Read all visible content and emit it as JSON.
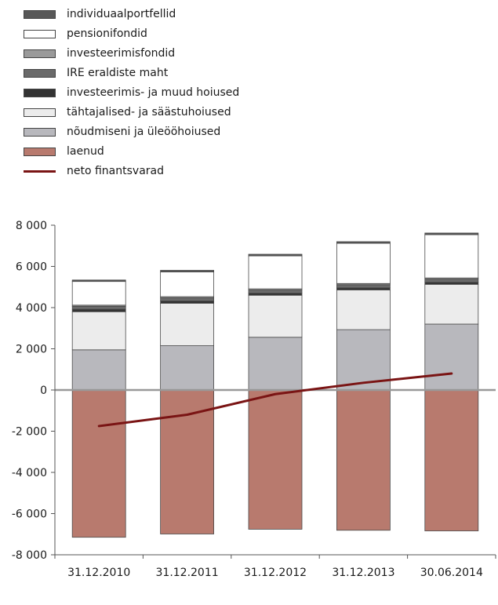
{
  "chart_data": {
    "type": "bar",
    "stacked": true,
    "categories": [
      "31.12.2010",
      "31.12.2011",
      "31.12.2012",
      "31.12.2013",
      "30.06.2014"
    ],
    "ylim": [
      -8000,
      8000
    ],
    "yticks": [
      8000,
      6000,
      4000,
      2000,
      0,
      -2000,
      -4000,
      -6000,
      -8000
    ],
    "ytick_labels": [
      "8 000",
      "6 000",
      "4 000",
      "2 000",
      "0",
      "-2 000",
      "-4 000",
      "-6 000",
      "-8 000"
    ],
    "legend": {
      "position": "top"
    },
    "series": [
      {
        "name": "laenud",
        "kind": "bar",
        "color": "#b87a6e",
        "values": [
          -7150,
          -6990,
          -6760,
          -6810,
          -6840
        ]
      },
      {
        "name": "nõudmiseni ja üleööhoiused",
        "kind": "bar",
        "color": "#b8b8bd",
        "values": [
          1950,
          2150,
          2560,
          2930,
          3200
        ]
      },
      {
        "name": "tähtajalised- ja säästuhoiused",
        "kind": "bar",
        "color": "#ececec",
        "values": [
          1850,
          2060,
          2040,
          1930,
          1930
        ]
      },
      {
        "name": "investeerimis- ja muud hoiused",
        "kind": "bar",
        "color": "#333333",
        "values": [
          120,
          110,
          100,
          100,
          100
        ]
      },
      {
        "name": "IRE eraldiste maht",
        "kind": "bar",
        "color": "#6a6a6a",
        "values": [
          140,
          150,
          150,
          150,
          150
        ]
      },
      {
        "name": "investeerimisfondid",
        "kind": "bar",
        "color": "#9a9a9a",
        "values": [
          60,
          60,
          60,
          60,
          60
        ]
      },
      {
        "name": "pensionifondid",
        "kind": "bar",
        "color": "#ffffff",
        "values": [
          1150,
          1200,
          1600,
          1950,
          2100
        ]
      },
      {
        "name": "individuaalportfellid",
        "kind": "bar",
        "color": "#585858",
        "values": [
          70,
          80,
          80,
          80,
          80
        ]
      },
      {
        "name": "neto finantsvarad",
        "kind": "line",
        "color": "#7a1414",
        "values": [
          -1750,
          -1200,
          -200,
          350,
          800
        ]
      }
    ]
  }
}
